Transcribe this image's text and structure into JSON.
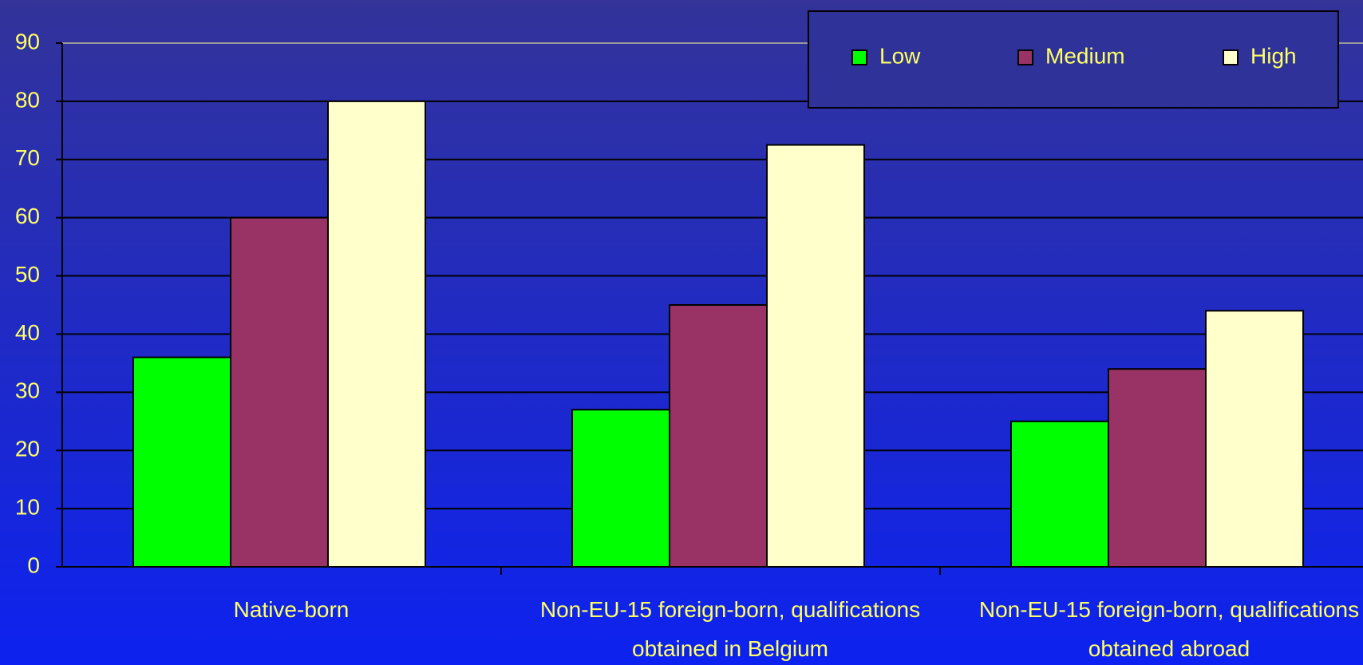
{
  "chart_data": {
    "type": "bar",
    "categories": [
      "Native-born",
      "Non-EU-15 foreign-born, qualifications obtained in Belgium",
      "Non-EU-15 foreign-born, qualifications obtained abroad"
    ],
    "series": [
      {
        "name": "Low",
        "color": "#00ff00",
        "values": [
          36,
          27,
          25
        ]
      },
      {
        "name": "Medium",
        "color": "#993366",
        "values": [
          60,
          45,
          34
        ]
      },
      {
        "name": "High",
        "color": "#ffffcc",
        "values": [
          80,
          72.5,
          44
        ]
      }
    ],
    "ylim": [
      0,
      90
    ],
    "yticks": [
      0,
      10,
      20,
      30,
      40,
      50,
      60,
      70,
      80,
      90
    ],
    "grid": true,
    "legend": "top-right"
  }
}
